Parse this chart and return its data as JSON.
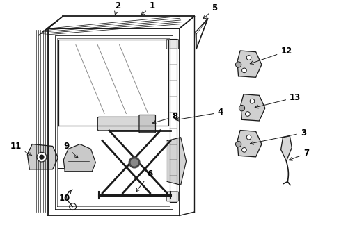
{
  "background": "#ffffff",
  "line_color": "#1a1a1a",
  "label_color": "#111111",
  "figsize": [
    4.9,
    3.6
  ],
  "dpi": 100
}
